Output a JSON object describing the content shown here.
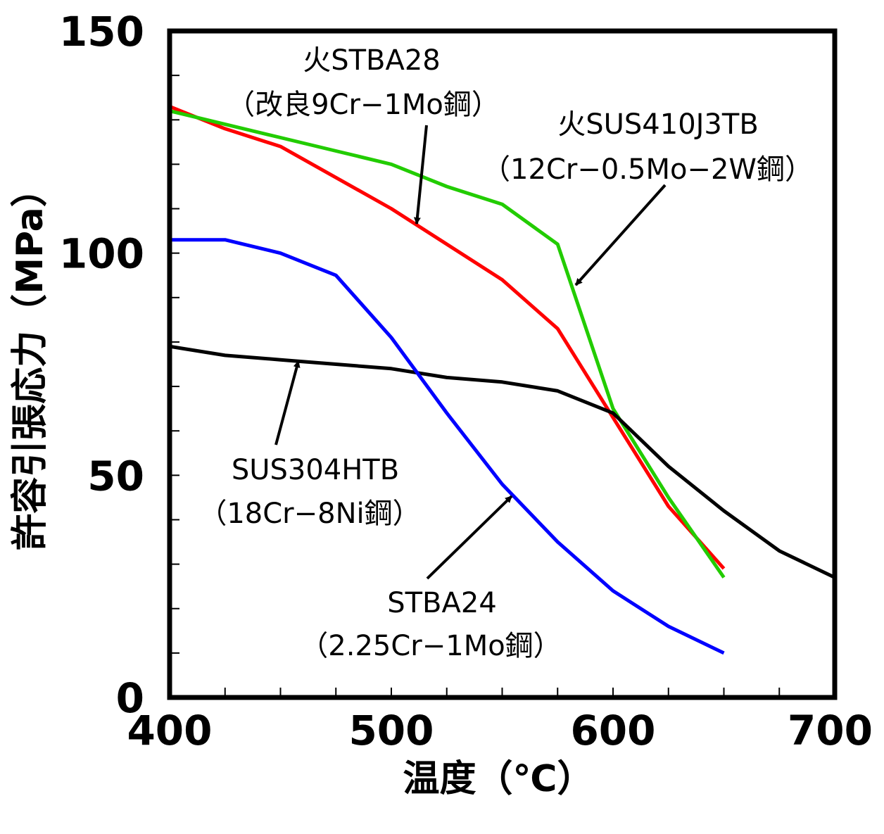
{
  "chart_data": {
    "type": "line",
    "xlabel": "温度（℃）",
    "ylabel": "許容引張応力（MPa）",
    "xlim": [
      400,
      700
    ],
    "ylim": [
      0,
      150
    ],
    "x_ticks": [
      "400",
      "500",
      "600",
      "700"
    ],
    "y_ticks": [
      "0",
      "50",
      "100",
      "150"
    ],
    "grid": false,
    "series": [
      {
        "key": "stba28",
        "color": "#ff0000",
        "x": [
          400,
          425,
          450,
          475,
          500,
          525,
          550,
          575,
          600,
          625,
          650
        ],
        "y": [
          133,
          128,
          124,
          117,
          110,
          102,
          94,
          83,
          63,
          43,
          29
        ]
      },
      {
        "key": "sus410",
        "color": "#22cc00",
        "x": [
          400,
          425,
          450,
          475,
          500,
          525,
          550,
          575,
          600,
          625,
          650
        ],
        "y": [
          132,
          129,
          126,
          123,
          120,
          115,
          111,
          102,
          65,
          45,
          27
        ]
      },
      {
        "key": "sus304",
        "color": "#000000",
        "x": [
          400,
          425,
          450,
          475,
          500,
          525,
          550,
          575,
          600,
          625,
          650,
          675,
          700
        ],
        "y": [
          79,
          77,
          76,
          75,
          74,
          72,
          71,
          69,
          64,
          52,
          42,
          33,
          27
        ]
      },
      {
        "key": "stba24",
        "color": "#0000ff",
        "x": [
          400,
          425,
          450,
          475,
          500,
          525,
          550,
          575,
          600,
          625,
          650
        ],
        "y": [
          103,
          103,
          100,
          95,
          81,
          64,
          48,
          35,
          24,
          16,
          10
        ]
      }
    ],
    "annotations": [
      {
        "key": "stba28",
        "lines": [
          "火STBA28",
          "（改良9Cr−1Mo鋼）"
        ]
      },
      {
        "key": "sus410",
        "lines": [
          "火SUS410J3TB",
          "（12Cr−0.5Mo−2W鋼）"
        ]
      },
      {
        "key": "sus304",
        "lines": [
          "SUS304HTB",
          "（18Cr−8Ni鋼）"
        ]
      },
      {
        "key": "stba24",
        "lines": [
          "STBA24",
          "（2.25Cr−1Mo鋼）"
        ]
      }
    ]
  }
}
